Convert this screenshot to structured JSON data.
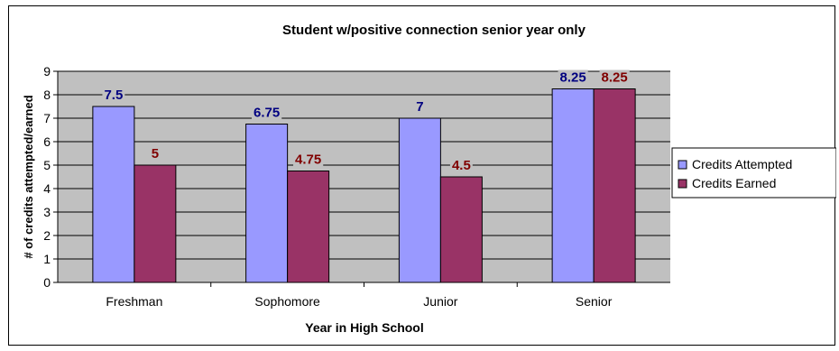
{
  "chart_data": {
    "type": "bar",
    "title": "Student w/positive connection senior year only",
    "xlabel": "Year in High School",
    "ylabel": "# of credits attempted/earned",
    "categories": [
      "Freshman",
      "Sophomore",
      "Junior",
      "Senior"
    ],
    "series": [
      {
        "name": "Credits Attempted",
        "values": [
          7.5,
          6.75,
          7,
          8.25
        ],
        "color": "#9999FF",
        "label_color": "#000080"
      },
      {
        "name": "Credits Earned",
        "values": [
          5,
          4.75,
          4.5,
          8.25
        ],
        "color": "#993366",
        "label_color": "#800000"
      }
    ],
    "data_labels": [
      [
        "7.5",
        "6.75",
        "7",
        "8.25"
      ],
      [
        "5",
        "4.75",
        "4.5",
        "8.25"
      ]
    ],
    "y_ticks": [
      "0",
      "1",
      "2",
      "3",
      "4",
      "5",
      "6",
      "7",
      "8",
      "9"
    ],
    "ylim": [
      0,
      9
    ],
    "grid": true,
    "plot_background": "#C0C0C0",
    "legend_position": "right"
  }
}
